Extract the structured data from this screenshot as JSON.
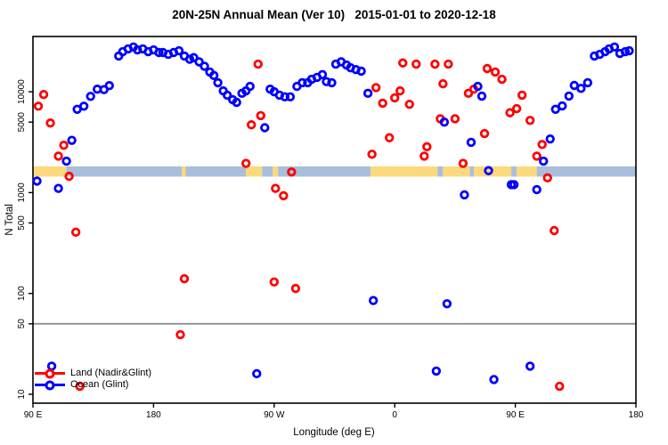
{
  "title": "20N-25N Annual Mean (Ver 10)   2015-01-01 to 2020-12-18",
  "colors": {
    "land": "#ff0000",
    "ocean": "#0000ff",
    "band_land": "#fbd97d",
    "band_ocean": "#a9bedb",
    "reference_line": "#8f8f8f",
    "axis": "#000000"
  },
  "legend": {
    "items": [
      {
        "label": "Land (Nadir&Glint)",
        "series": "land"
      },
      {
        "label": "Ocean (Glint)",
        "series": "ocean"
      }
    ]
  },
  "chart_data": {
    "type": "scatter",
    "title": "20N-25N Annual Mean (Ver 10)   2015-01-01 to 2020-12-18",
    "xlabel": "Longitude (deg E)",
    "ylabel": "N Total",
    "x_axis_note": "longitude axis spans 450 deg starting at 90E and wrapping: 90E, 180, 90W, 0, 90E, 180",
    "xlim": [
      90,
      540
    ],
    "y_scale": "log10",
    "ylim": [
      8,
      35000
    ],
    "x_ticks": [
      {
        "label": "90 E",
        "lon": 90
      },
      {
        "label": "180",
        "lon": 180
      },
      {
        "label": "90 W",
        "lon": 270
      },
      {
        "label": "0",
        "lon": 360
      },
      {
        "label": "90 E",
        "lon": 450
      },
      {
        "label": "180",
        "lon": 540
      }
    ],
    "y_ticks": [
      {
        "label": "10",
        "value": 10
      },
      {
        "label": "50",
        "value": 50
      },
      {
        "label": "100",
        "value": 100
      },
      {
        "label": "500",
        "value": 500
      },
      {
        "label": "1000",
        "value": 1000
      },
      {
        "label": "5000",
        "value": 5000
      },
      {
        "label": "10000",
        "value": 10000
      }
    ],
    "reference_line_value": 50,
    "land_ocean_band": {
      "value_range": [
        1440,
        1820
      ],
      "segments": [
        [
          90,
          115,
          "land"
        ],
        [
          115,
          201,
          "ocean"
        ],
        [
          201,
          204,
          "land"
        ],
        [
          204,
          249,
          "ocean"
        ],
        [
          249,
          261,
          "land"
        ],
        [
          261,
          269,
          "ocean"
        ],
        [
          269,
          273,
          "land"
        ],
        [
          273,
          342,
          "ocean"
        ],
        [
          342,
          392,
          "land"
        ],
        [
          392,
          396,
          "ocean"
        ],
        [
          396,
          416,
          "land"
        ],
        [
          416,
          419,
          "ocean"
        ],
        [
          419,
          447,
          "land"
        ],
        [
          447,
          451,
          "ocean"
        ],
        [
          451,
          466,
          "land"
        ],
        [
          466,
          540,
          "ocean"
        ]
      ]
    },
    "series": [
      {
        "name": "Land (Nadir&Glint)",
        "color_key": "land",
        "points": [
          [
            94,
            7200
          ],
          [
            98,
            9400
          ],
          [
            103,
            4900
          ],
          [
            109,
            2300
          ],
          [
            113,
            2950
          ],
          [
            117,
            1450
          ],
          [
            122,
            405
          ],
          [
            125,
            12
          ],
          [
            200,
            39
          ],
          [
            203,
            140
          ],
          [
            249,
            1950
          ],
          [
            253,
            4700
          ],
          [
            258,
            18800
          ],
          [
            260,
            5800
          ],
          [
            270,
            130
          ],
          [
            271,
            1100
          ],
          [
            277,
            930
          ],
          [
            283,
            1600
          ],
          [
            286,
            112
          ],
          [
            343,
            2400
          ],
          [
            346,
            11000
          ],
          [
            351,
            7700
          ],
          [
            356,
            3500
          ],
          [
            360,
            8700
          ],
          [
            364,
            10200
          ],
          [
            366,
            19300
          ],
          [
            371,
            7500
          ],
          [
            376,
            18800
          ],
          [
            382,
            2300
          ],
          [
            384,
            2850
          ],
          [
            390,
            18800
          ],
          [
            394,
            5400
          ],
          [
            396,
            12000
          ],
          [
            400,
            18800
          ],
          [
            405,
            5400
          ],
          [
            411,
            1950
          ],
          [
            415,
            9650
          ],
          [
            419,
            10600
          ],
          [
            427,
            3850
          ],
          [
            429,
            17000
          ],
          [
            435,
            15700
          ],
          [
            440,
            13300
          ],
          [
            446,
            6200
          ],
          [
            451,
            6800
          ],
          [
            455,
            9250
          ],
          [
            461,
            5200
          ],
          [
            466,
            2300
          ],
          [
            470,
            3000
          ],
          [
            474,
            1400
          ],
          [
            479,
            420
          ],
          [
            483,
            12
          ]
        ]
      },
      {
        "name": "Ocean (Glint)",
        "color_key": "ocean",
        "points": [
          [
            93,
            1300
          ],
          [
            104,
            19
          ],
          [
            109,
            1100
          ],
          [
            115,
            2050
          ],
          [
            119,
            3300
          ],
          [
            123,
            6700
          ],
          [
            128,
            7200
          ],
          [
            133,
            9000
          ],
          [
            138,
            10600
          ],
          [
            143,
            10500
          ],
          [
            147,
            11500
          ],
          [
            154,
            22600
          ],
          [
            157,
            25000
          ],
          [
            161,
            26600
          ],
          [
            165,
            27800
          ],
          [
            168,
            26000
          ],
          [
            172,
            26600
          ],
          [
            176,
            25000
          ],
          [
            180,
            26000
          ],
          [
            184,
            24500
          ],
          [
            187,
            24500
          ],
          [
            191,
            23500
          ],
          [
            195,
            24500
          ],
          [
            199,
            25500
          ],
          [
            203,
            22600
          ],
          [
            207,
            21000
          ],
          [
            210,
            21800
          ],
          [
            214,
            19800
          ],
          [
            218,
            17900
          ],
          [
            222,
            15700
          ],
          [
            225,
            14500
          ],
          [
            228,
            12300
          ],
          [
            232,
            10200
          ],
          [
            235,
            9250
          ],
          [
            239,
            8350
          ],
          [
            242,
            7850
          ],
          [
            246,
            9650
          ],
          [
            249,
            10200
          ],
          [
            252,
            11300
          ],
          [
            257,
            16
          ],
          [
            263,
            4400
          ],
          [
            267,
            10600
          ],
          [
            270,
            10000
          ],
          [
            274,
            9250
          ],
          [
            278,
            8900
          ],
          [
            282,
            8900
          ],
          [
            287,
            11300
          ],
          [
            291,
            12300
          ],
          [
            295,
            12300
          ],
          [
            298,
            13300
          ],
          [
            302,
            13900
          ],
          [
            306,
            14800
          ],
          [
            309,
            12600
          ],
          [
            313,
            12300
          ],
          [
            316,
            18800
          ],
          [
            320,
            19800
          ],
          [
            324,
            18400
          ],
          [
            327,
            17300
          ],
          [
            331,
            16600
          ],
          [
            335,
            16000
          ],
          [
            340,
            9650
          ],
          [
            344,
            85
          ],
          [
            391,
            17
          ],
          [
            397,
            5000
          ],
          [
            399,
            79
          ],
          [
            412,
            950
          ],
          [
            417,
            3150
          ],
          [
            422,
            11300
          ],
          [
            425,
            9050
          ],
          [
            430,
            1650
          ],
          [
            434,
            14
          ],
          [
            447,
            1200
          ],
          [
            449,
            1200
          ],
          [
            461,
            19
          ],
          [
            466,
            1070
          ],
          [
            471,
            2050
          ],
          [
            476,
            3400
          ],
          [
            480,
            6700
          ],
          [
            485,
            7240
          ],
          [
            490,
            9060
          ],
          [
            494,
            11550
          ],
          [
            499,
            10800
          ],
          [
            504,
            12300
          ],
          [
            509,
            22600
          ],
          [
            513,
            23500
          ],
          [
            517,
            25000
          ],
          [
            520,
            26600
          ],
          [
            524,
            27800
          ],
          [
            528,
            24000
          ],
          [
            532,
            25000
          ],
          [
            535,
            25500
          ]
        ]
      }
    ]
  }
}
